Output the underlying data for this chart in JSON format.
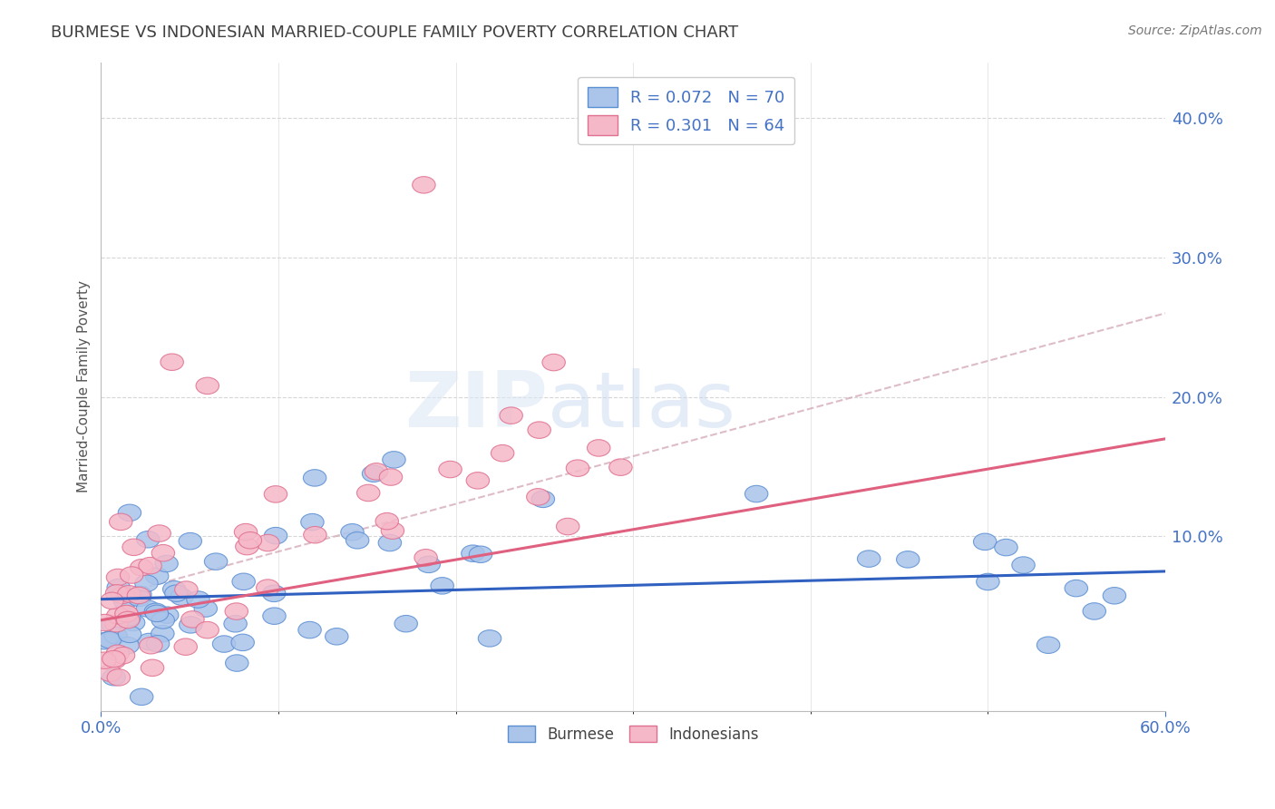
{
  "title": "BURMESE VS INDONESIAN MARRIED-COUPLE FAMILY POVERTY CORRELATION CHART",
  "source": "Source: ZipAtlas.com",
  "ylabel": "Married-Couple Family Poverty",
  "xlim": [
    0.0,
    0.6
  ],
  "ylim": [
    -0.025,
    0.44
  ],
  "yticks_right": [
    0.1,
    0.2,
    0.3,
    0.4
  ],
  "grid_color": "#cccccc",
  "background_color": "#ffffff",
  "watermark_zip": "ZIP",
  "watermark_atlas": "atlas",
  "burmese_face_color": "#aac4ea",
  "burmese_edge_color": "#5b8fd4",
  "indonesian_face_color": "#f5b8c8",
  "indonesian_edge_color": "#e07090",
  "trend_burmese_color": "#3060c0",
  "trend_indonesian_color": "#e06080",
  "trend_dashed_color": "#d0a0b0",
  "R_burmese": 0.072,
  "N_burmese": 70,
  "R_indonesian": 0.301,
  "N_indonesian": 64,
  "legend_color": "#4472c4",
  "title_color": "#404040",
  "source_color": "#777777",
  "ylabel_color": "#555555",
  "burmese_trend_y0": 0.055,
  "burmese_trend_y1": 0.075,
  "indonesian_trend_y0": 0.04,
  "indonesian_trend_y1": 0.17,
  "dashed_trend_y0": 0.055,
  "dashed_trend_y1": 0.26
}
